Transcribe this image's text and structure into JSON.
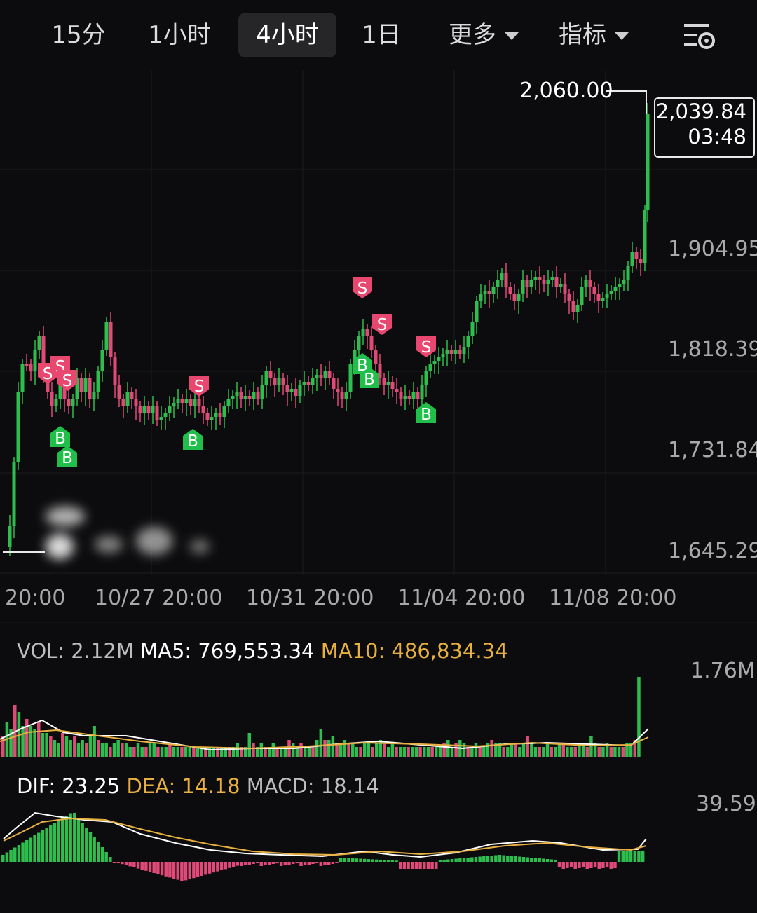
{
  "tabs": [
    {
      "label": "15分",
      "active": false
    },
    {
      "label": "1小时",
      "active": false
    },
    {
      "label": "4小时",
      "active": true
    },
    {
      "label": "1日",
      "active": false
    },
    {
      "label": "更多",
      "active": false,
      "dropdown": true
    },
    {
      "label": "指标",
      "active": false,
      "dropdown": true
    }
  ],
  "settings_icon": "chart-settings-icon",
  "main": {
    "high_marker": "2,060.00",
    "current_price": "2,039.84",
    "current_time": "03:48",
    "y_labels": [
      "1,904.95",
      "1,818.39",
      "1,731.84",
      "1,645.29"
    ],
    "x_labels": [
      "20:00",
      "10/27 20:00",
      "10/31 20:00",
      "11/04 20:00",
      "11/08 20:00"
    ]
  },
  "volume": {
    "vol_label": "VOL: 2.12M",
    "ma5_label": "MA5: 769,553.34",
    "ma10_label": "MA10: 486,834.34",
    "scale_max": "1.76M"
  },
  "macd": {
    "dif_label": "DIF: 23.25",
    "dea_label": "DEA: 14.18",
    "macd_label": "MACD: 18.14",
    "scale_max": "39.59"
  },
  "colors": {
    "up": "#2ebd4e",
    "down": "#e04a78",
    "ma10": "#e8b040",
    "ma5": "#ffffff",
    "buy_marker": "#1fbf4a",
    "sell_marker": "#e8486f"
  },
  "trade_markers": {
    "buy_label": "B",
    "sell_label": "S"
  }
}
